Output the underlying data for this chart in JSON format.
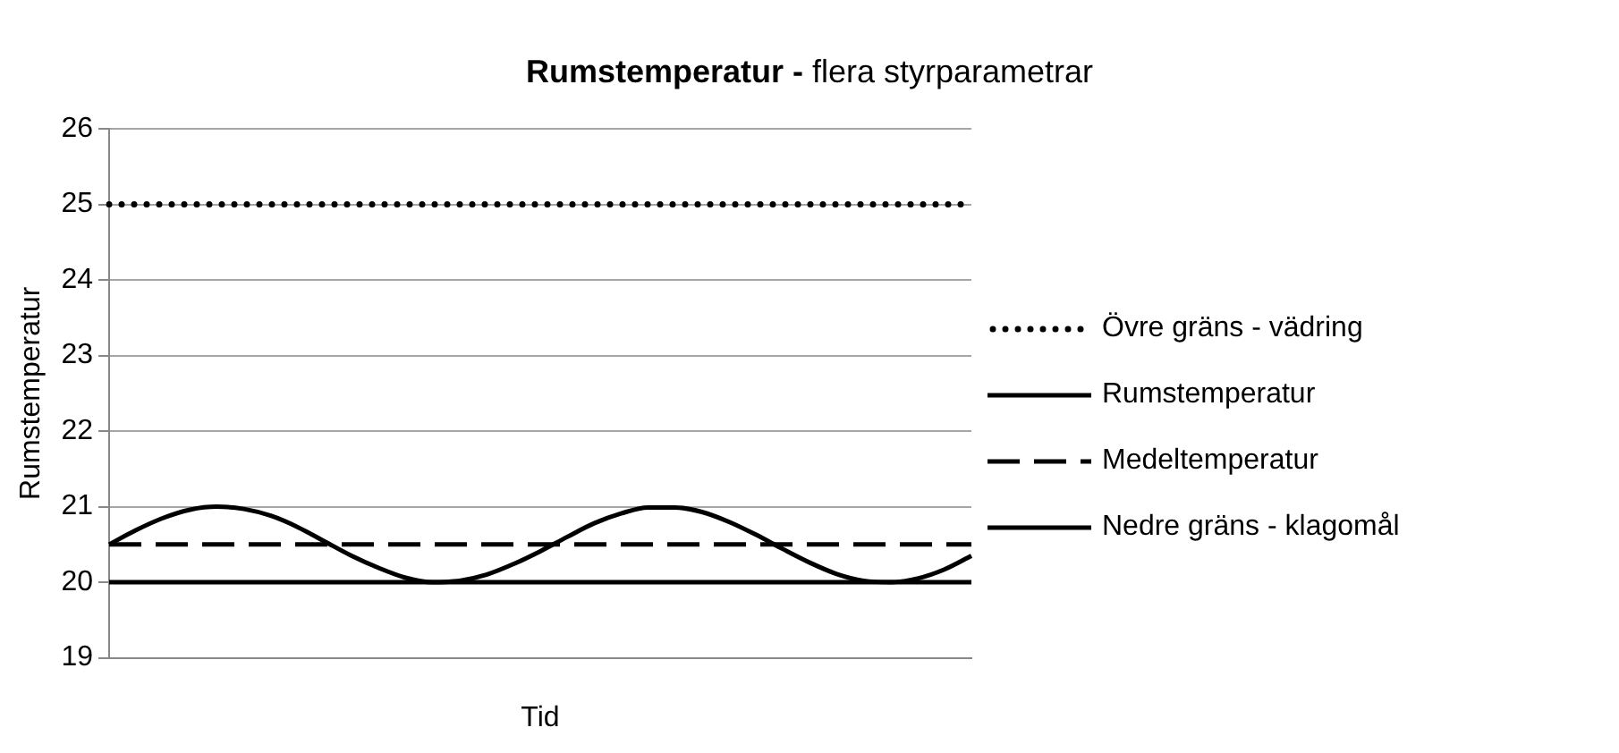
{
  "chart_data": {
    "type": "line",
    "title": "Rumstemperatur -",
    "subtitle": "flera styrparametrar",
    "xlabel": "Tid",
    "ylabel": "Rumstemperatur",
    "categories": [
      null,
      null,
      null,
      null,
      null,
      null,
      null,
      null,
      null,
      null,
      null,
      null,
      null,
      null,
      null,
      null,
      null,
      null,
      null,
      null,
      null,
      null,
      null,
      null,
      null,
      null,
      null,
      null,
      null,
      null,
      null,
      null,
      null
    ],
    "series": [
      {
        "name": "Övre gräns - vädring",
        "color": "#000000",
        "line_style": "dotted",
        "values": [
          25,
          25,
          25,
          25,
          25,
          25,
          25,
          25,
          25,
          25,
          25,
          25,
          25,
          25,
          25,
          25,
          25,
          25,
          25,
          25,
          25,
          25,
          25,
          25,
          25,
          25,
          25,
          25,
          25,
          25,
          25,
          25,
          25
        ]
      },
      {
        "name": "Rumstemperatur",
        "color": "#000000",
        "line_style": "solid",
        "values": [
          20.5,
          20.69,
          20.85,
          20.96,
          21.0,
          20.97,
          20.88,
          20.73,
          20.54,
          20.35,
          20.19,
          20.06,
          20.0,
          20.02,
          20.1,
          20.24,
          20.41,
          20.6,
          20.78,
          20.91,
          20.99,
          20.99,
          20.93,
          20.8,
          20.63,
          20.44,
          20.26,
          20.11,
          20.02,
          20.0,
          20.05,
          20.17,
          20.35
        ]
      },
      {
        "name": "Medeltemperatur",
        "color": "#000000",
        "line_style": "dashed",
        "values": [
          20.5,
          20.5,
          20.5,
          20.5,
          20.5,
          20.5,
          20.5,
          20.5,
          20.5,
          20.5,
          20.5,
          20.5,
          20.5,
          20.5,
          20.5,
          20.5,
          20.5,
          20.5,
          20.5,
          20.5,
          20.5,
          20.5,
          20.5,
          20.5,
          20.5,
          20.5,
          20.5,
          20.5,
          20.5,
          20.5,
          20.5,
          20.5,
          20.5
        ]
      },
      {
        "name": "Nedre gräns - klagomål",
        "color": "#000000",
        "line_style": "solid",
        "values": [
          20,
          20,
          20,
          20,
          20,
          20,
          20,
          20,
          20,
          20,
          20,
          20,
          20,
          20,
          20,
          20,
          20,
          20,
          20,
          20,
          20,
          20,
          20,
          20,
          20,
          20,
          20,
          20,
          20,
          20,
          20,
          20,
          20
        ]
      }
    ],
    "ylim": [
      19,
      26
    ],
    "yticks": [
      19,
      20,
      21,
      22,
      23,
      24,
      25,
      26
    ],
    "grid": "y",
    "legend": "right",
    "marker": "none"
  }
}
